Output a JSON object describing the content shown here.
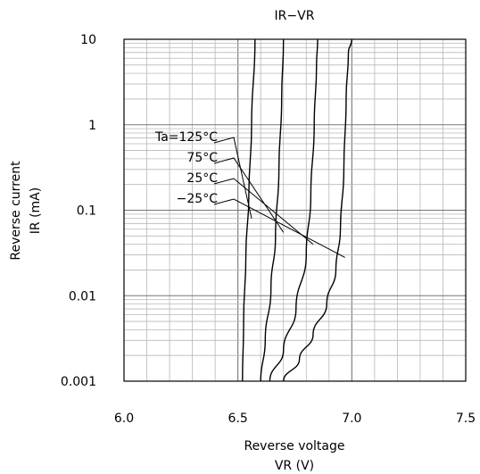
{
  "chart_data": {
    "type": "line",
    "title": "IR−VR",
    "xlabel_line1": "Reverse voltage",
    "xlabel_line2": "VR (V)",
    "ylabel_line1": "Reverse current",
    "ylabel_line2": "IR (mA)",
    "xlim": [
      6.0,
      7.5
    ],
    "ylim": [
      0.001,
      10
    ],
    "yscale": "log",
    "grid": true,
    "x_ticks": [
      {
        "value": 6.0,
        "label": "6.0"
      },
      {
        "value": 6.5,
        "label": "6.5"
      },
      {
        "value": 7.0,
        "label": "7.0"
      },
      {
        "value": 7.5,
        "label": "7.5"
      }
    ],
    "y_ticks": [
      {
        "value": 10,
        "label": "10"
      },
      {
        "value": 1,
        "label": "1"
      },
      {
        "value": 0.1,
        "label": "0.1"
      },
      {
        "value": 0.01,
        "label": "0.01"
      },
      {
        "value": 0.001,
        "label": "0.001"
      }
    ],
    "series": [
      {
        "name": "Ta=125°C",
        "label_at": [
          6.56,
          0.08
        ],
        "points": [
          [
            6.52,
            0.001
          ],
          [
            6.525,
            0.005
          ],
          [
            6.535,
            0.03
          ],
          [
            6.548,
            0.15
          ],
          [
            6.56,
            1
          ],
          [
            6.575,
            10
          ]
        ]
      },
      {
        "name": "75°C",
        "label_at": [
          6.7,
          0.055
        ],
        "points": [
          [
            6.6,
            0.001
          ],
          [
            6.62,
            0.003
          ],
          [
            6.645,
            0.012
          ],
          [
            6.665,
            0.05
          ],
          [
            6.68,
            0.3
          ],
          [
            6.692,
            2
          ],
          [
            6.7,
            10
          ]
        ]
      },
      {
        "name": "25°C",
        "label_at": [
          6.83,
          0.04
        ],
        "points": [
          [
            6.64,
            0.001
          ],
          [
            6.7,
            0.0023
          ],
          [
            6.755,
            0.007
          ],
          [
            6.8,
            0.03
          ],
          [
            6.82,
            0.15
          ],
          [
            6.835,
            1
          ],
          [
            6.845,
            5
          ],
          [
            6.85,
            10
          ]
        ]
      },
      {
        "name": "−25°C",
        "label_at": [
          6.97,
          0.028
        ],
        "points": [
          [
            6.7,
            0.001
          ],
          [
            6.77,
            0.0018
          ],
          [
            6.83,
            0.0035
          ],
          [
            6.89,
            0.008
          ],
          [
            6.93,
            0.02
          ],
          [
            6.95,
            0.06
          ],
          [
            6.965,
            0.3
          ],
          [
            6.975,
            2
          ],
          [
            6.985,
            7
          ],
          [
            7.0,
            10
          ]
        ]
      }
    ],
    "labels": [
      "Ta=125°C",
      "75°C",
      "25°C",
      "−25°C"
    ]
  }
}
